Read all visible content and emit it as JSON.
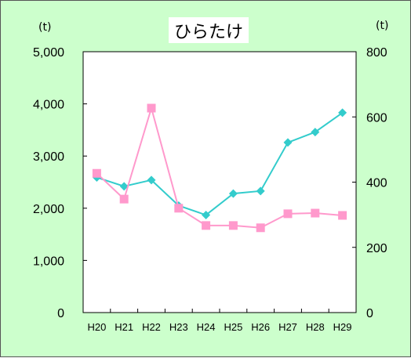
{
  "unit_left": "(t)",
  "unit_right": "(t)",
  "chart_data": {
    "type": "line",
    "title": "ひらたけ",
    "categories": [
      "H20",
      "H21",
      "H22",
      "H23",
      "H24",
      "H25",
      "H26",
      "H27",
      "H28",
      "H29"
    ],
    "y_left": {
      "ylim": [
        0,
        5000
      ],
      "ticks": [
        "0",
        "1,000",
        "2,000",
        "3,000",
        "4,000",
        "5,000"
      ],
      "tick_values": [
        0,
        1000,
        2000,
        3000,
        4000,
        5000
      ]
    },
    "y_right": {
      "ylim": [
        0,
        800
      ],
      "ticks": [
        "0",
        "200",
        "400",
        "600",
        "800"
      ],
      "tick_values": [
        0,
        200,
        400,
        600,
        800
      ]
    },
    "series": [
      {
        "axis": "left",
        "marker": "diamond",
        "color": "#33cccc",
        "values": [
          2590,
          2420,
          2540,
          2050,
          1870,
          2280,
          2330,
          3260,
          3460,
          3830
        ]
      },
      {
        "axis": "right",
        "marker": "square",
        "color": "#ff99cc",
        "values": [
          427,
          348,
          627,
          320,
          267,
          267,
          260,
          303,
          305,
          298
        ]
      }
    ],
    "grid": false,
    "legend": "none"
  }
}
